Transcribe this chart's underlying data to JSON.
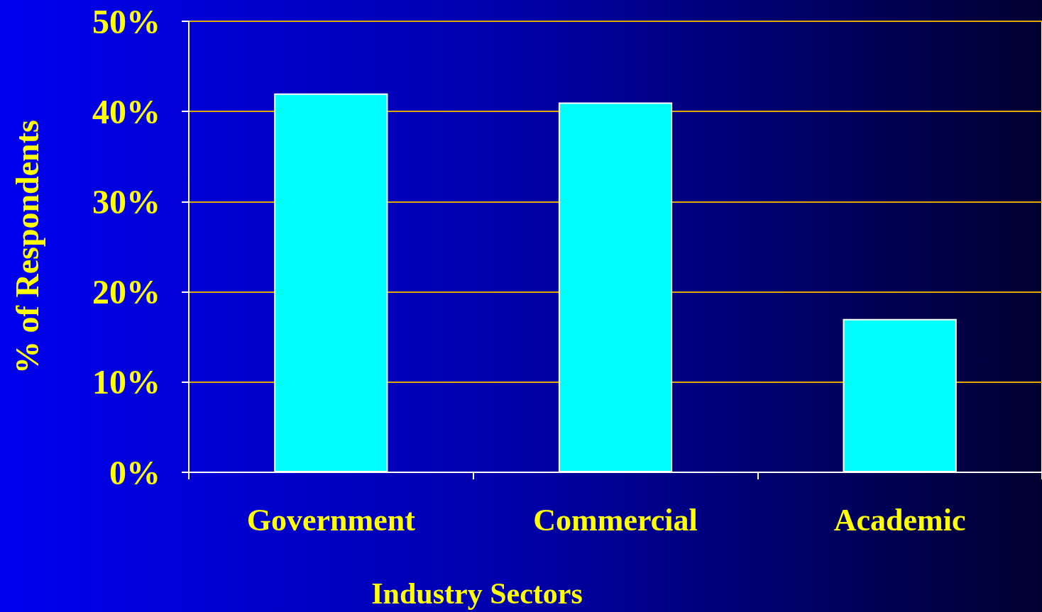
{
  "chart_data": {
    "type": "bar",
    "xlabel": "Industry Sectors",
    "ylabel": "% of Respondents",
    "categories": [
      "Government",
      "Commercial",
      "Academic"
    ],
    "values": [
      42,
      41,
      17
    ],
    "color": "#00ffff",
    "ylim": [
      0,
      50
    ],
    "yticks": [
      {
        "value": 0,
        "label": "0%"
      },
      {
        "value": 10,
        "label": "10%"
      },
      {
        "value": 20,
        "label": "20%"
      },
      {
        "value": 30,
        "label": "30%"
      },
      {
        "value": 40,
        "label": "40%"
      },
      {
        "value": 50,
        "label": "50%"
      }
    ],
    "grid": "y"
  }
}
